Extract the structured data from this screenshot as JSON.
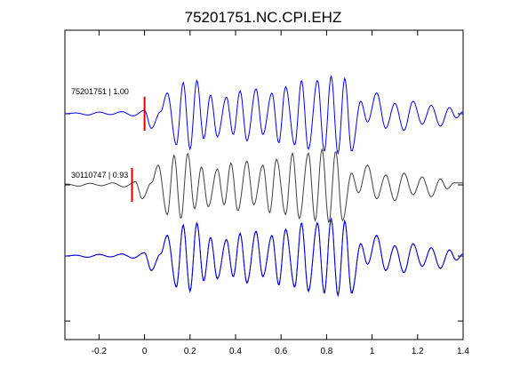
{
  "chart_data": {
    "type": "line",
    "title": "75201751.NC.CPI.EHZ",
    "xlabel": "",
    "ylabel": "",
    "xlim": [
      -0.35,
      1.4
    ],
    "x_ticks": [
      -0.2,
      0,
      0.2,
      0.4,
      0.6,
      0.8,
      1,
      1.2,
      1.4
    ],
    "x_tick_labels": [
      "-0.2",
      "0",
      "0.2",
      "0.4",
      "0.6",
      "0.8",
      "1",
      "1.2",
      "1.4"
    ],
    "ylim": [
      0,
      1
    ],
    "y_ticks": [
      0.06,
      0.27,
      0.5,
      0.73
    ],
    "grid": false,
    "legend": "none",
    "colors": {
      "master": "#0000ff",
      "secondary": "#404040",
      "pick": "#e00000"
    },
    "traces": [
      {
        "id": "master",
        "label": "75201751 | 1.00",
        "color": "#0000ff",
        "pick_time": 0.0,
        "baseline": 0.73
      },
      {
        "id": "secondary",
        "label": "30110747 | 0.93",
        "color": "#404040",
        "pick_time": -0.055,
        "baseline": 0.5
      },
      {
        "id": "overlay",
        "label": "",
        "baselines": [
          0.27
        ],
        "colors": [
          "#404040",
          "#0000ff"
        ]
      }
    ],
    "waveform": {
      "t": [
        -0.35,
        -0.3,
        -0.25,
        -0.2,
        -0.15,
        -0.1,
        -0.05,
        0.0,
        0.03,
        0.07,
        0.1,
        0.14,
        0.17,
        0.2,
        0.23,
        0.26,
        0.29,
        0.32,
        0.36,
        0.39,
        0.42,
        0.45,
        0.49,
        0.52,
        0.56,
        0.59,
        0.62,
        0.66,
        0.69,
        0.72,
        0.76,
        0.79,
        0.82,
        0.85,
        0.88,
        0.91,
        0.95,
        0.98,
        1.02,
        1.06,
        1.1,
        1.14,
        1.18,
        1.22,
        1.26,
        1.3,
        1.34,
        1.37,
        1.4
      ],
      "amp": [
        0.0,
        0.02,
        -0.03,
        0.04,
        -0.02,
        0.05,
        -0.05,
        0.08,
        -0.35,
        0.05,
        0.5,
        -0.75,
        0.75,
        -0.85,
        0.8,
        -0.6,
        0.45,
        -0.55,
        0.4,
        -0.5,
        0.55,
        -0.65,
        0.6,
        -0.5,
        0.5,
        -0.7,
        0.65,
        -0.75,
        0.8,
        -0.85,
        0.8,
        -0.9,
        0.9,
        -0.95,
        0.85,
        -0.9,
        0.3,
        -0.2,
        0.5,
        -0.35,
        0.25,
        -0.4,
        0.3,
        -0.25,
        0.2,
        -0.3,
        0.15,
        -0.1,
        0.05
      ]
    },
    "secondary_offset": -0.04
  }
}
